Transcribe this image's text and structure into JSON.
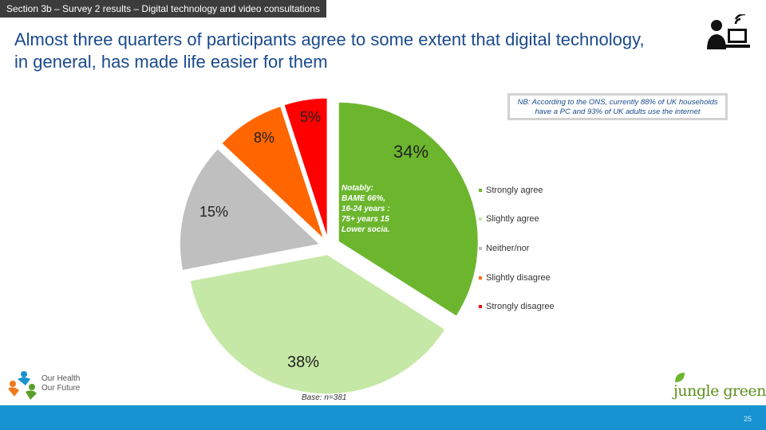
{
  "header": {
    "section_tag": "Section 3b – Survey 2 results – Digital technology and video consultations",
    "title": "Almost three quarters of participants agree to some extent that digital technology, in general, has made life easier for them"
  },
  "note": "NB: According to the ONS, currently 88% of UK households have a PC and 93% of UK adults use the internet",
  "notably": [
    "Notably:",
    "BAME 66%,",
    "16-24 years :",
    "75+ years 15",
    "Lower socia."
  ],
  "base": "Base: n=381",
  "footer": {
    "page_number": "25"
  },
  "logos": {
    "left": [
      "Our Health",
      "Our Future"
    ],
    "right": "jungle green"
  },
  "chart_data": {
    "type": "pie",
    "title": "",
    "categories": [
      "Strongly agree",
      "Slightly agree",
      "Neither/nor",
      "Slightly disagree",
      "Strongly disagree"
    ],
    "values": [
      34,
      38,
      15,
      8,
      5
    ],
    "labels": [
      "34%",
      "38%",
      "15%",
      "8%",
      "5%"
    ],
    "colors": [
      "#6cb62e",
      "#c5e8a6",
      "#bfbfbf",
      "#ff6600",
      "#ff0000"
    ],
    "exploded": true,
    "legend_position": "right"
  }
}
